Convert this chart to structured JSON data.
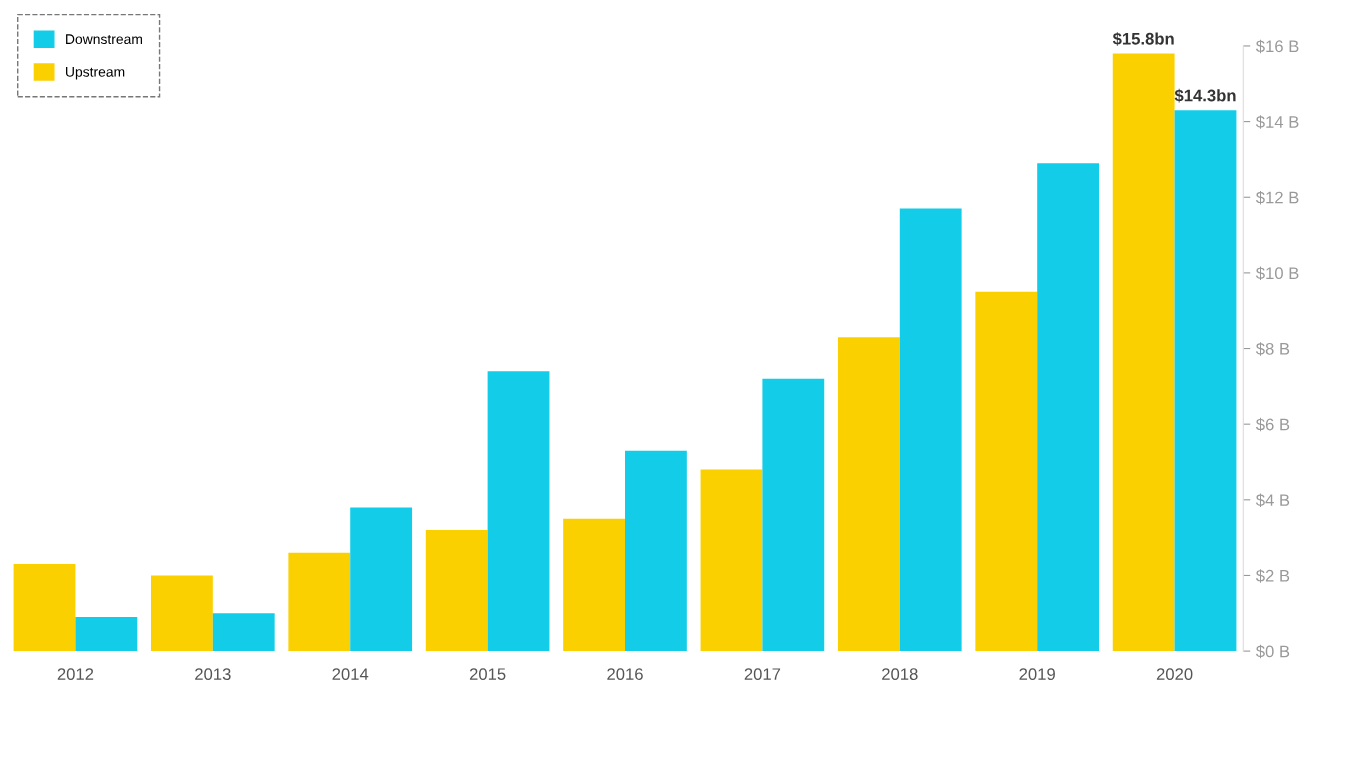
{
  "chart_data": {
    "type": "bar",
    "categories": [
      "2012",
      "2013",
      "2014",
      "2015",
      "2016",
      "2017",
      "2018",
      "2019",
      "2020"
    ],
    "series": [
      {
        "name": "Upstream",
        "color": "#fbd000",
        "values": [
          2.3,
          2.0,
          2.6,
          3.2,
          3.5,
          4.8,
          8.3,
          9.5,
          15.8
        ],
        "value_labels": [
          null,
          null,
          null,
          null,
          null,
          null,
          null,
          null,
          "$15.8bn"
        ]
      },
      {
        "name": "Downstream",
        "color": "#13cde8",
        "values": [
          0.9,
          1.0,
          3.8,
          7.4,
          5.3,
          7.2,
          11.7,
          12.9,
          14.3
        ],
        "value_labels": [
          null,
          null,
          null,
          null,
          null,
          null,
          null,
          null,
          "$14.3bn"
        ]
      }
    ],
    "ylim": [
      0,
      16
    ],
    "yticks": [
      {
        "value": 0,
        "label": "$0 B"
      },
      {
        "value": 2,
        "label": "$2 B"
      },
      {
        "value": 4,
        "label": "$4 B"
      },
      {
        "value": 6,
        "label": "$6 B"
      },
      {
        "value": 8,
        "label": "$8 B"
      },
      {
        "value": 10,
        "label": "$10 B"
      },
      {
        "value": 12,
        "label": "$12 B"
      },
      {
        "value": 14,
        "label": "$14 B"
      },
      {
        "value": 16,
        "label": "$16 B"
      }
    ],
    "grid": false,
    "legend": "top left"
  }
}
